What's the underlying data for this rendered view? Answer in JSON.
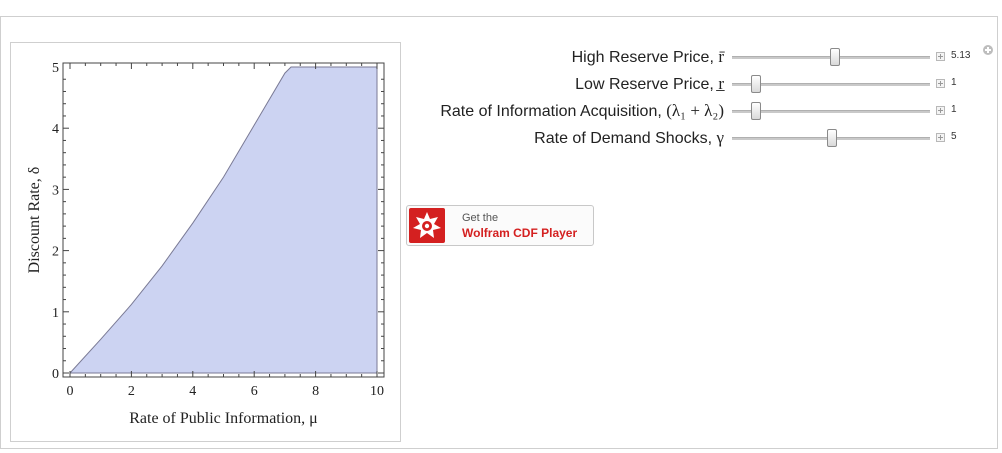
{
  "controls": [
    {
      "label": "High Reserve Price, ",
      "symbol": "r̄",
      "value": "5.13",
      "fraction": 0.52
    },
    {
      "label": "Low Reserve Price, ",
      "symbol": "r̲",
      "value": "1",
      "fraction": 0.12
    },
    {
      "label": "Rate of Information Acquisition, ",
      "symbol": "(λ₁ + λ₂)",
      "value": "1",
      "fraction": 0.12
    },
    {
      "label": "Rate of Demand Shocks, ",
      "symbol": "γ",
      "value": "5",
      "fraction": 0.505
    }
  ],
  "cdf_badge": {
    "get": "Get the",
    "name": "Wolfram CDF Player"
  },
  "colors": {
    "fill": "#ccd3f2",
    "outline": "#7a7a95"
  },
  "chart_data": {
    "type": "area",
    "xlabel": "Rate of Public Information,  μ",
    "ylabel": "Discount Rate,  δ",
    "xlim": [
      0,
      10
    ],
    "ylim": [
      0,
      5
    ],
    "xticks": [
      "0",
      "2",
      "4",
      "6",
      "8",
      "10"
    ],
    "yticks": [
      "0",
      "1",
      "2",
      "3",
      "4",
      "5"
    ],
    "region_upper": {
      "x": [
        0,
        1,
        2,
        3,
        4,
        5,
        6,
        7,
        7.2,
        10
      ],
      "y": [
        0,
        0.55,
        1.12,
        1.75,
        2.45,
        3.2,
        4.05,
        4.9,
        5,
        5
      ]
    },
    "region_lower": 0
  }
}
